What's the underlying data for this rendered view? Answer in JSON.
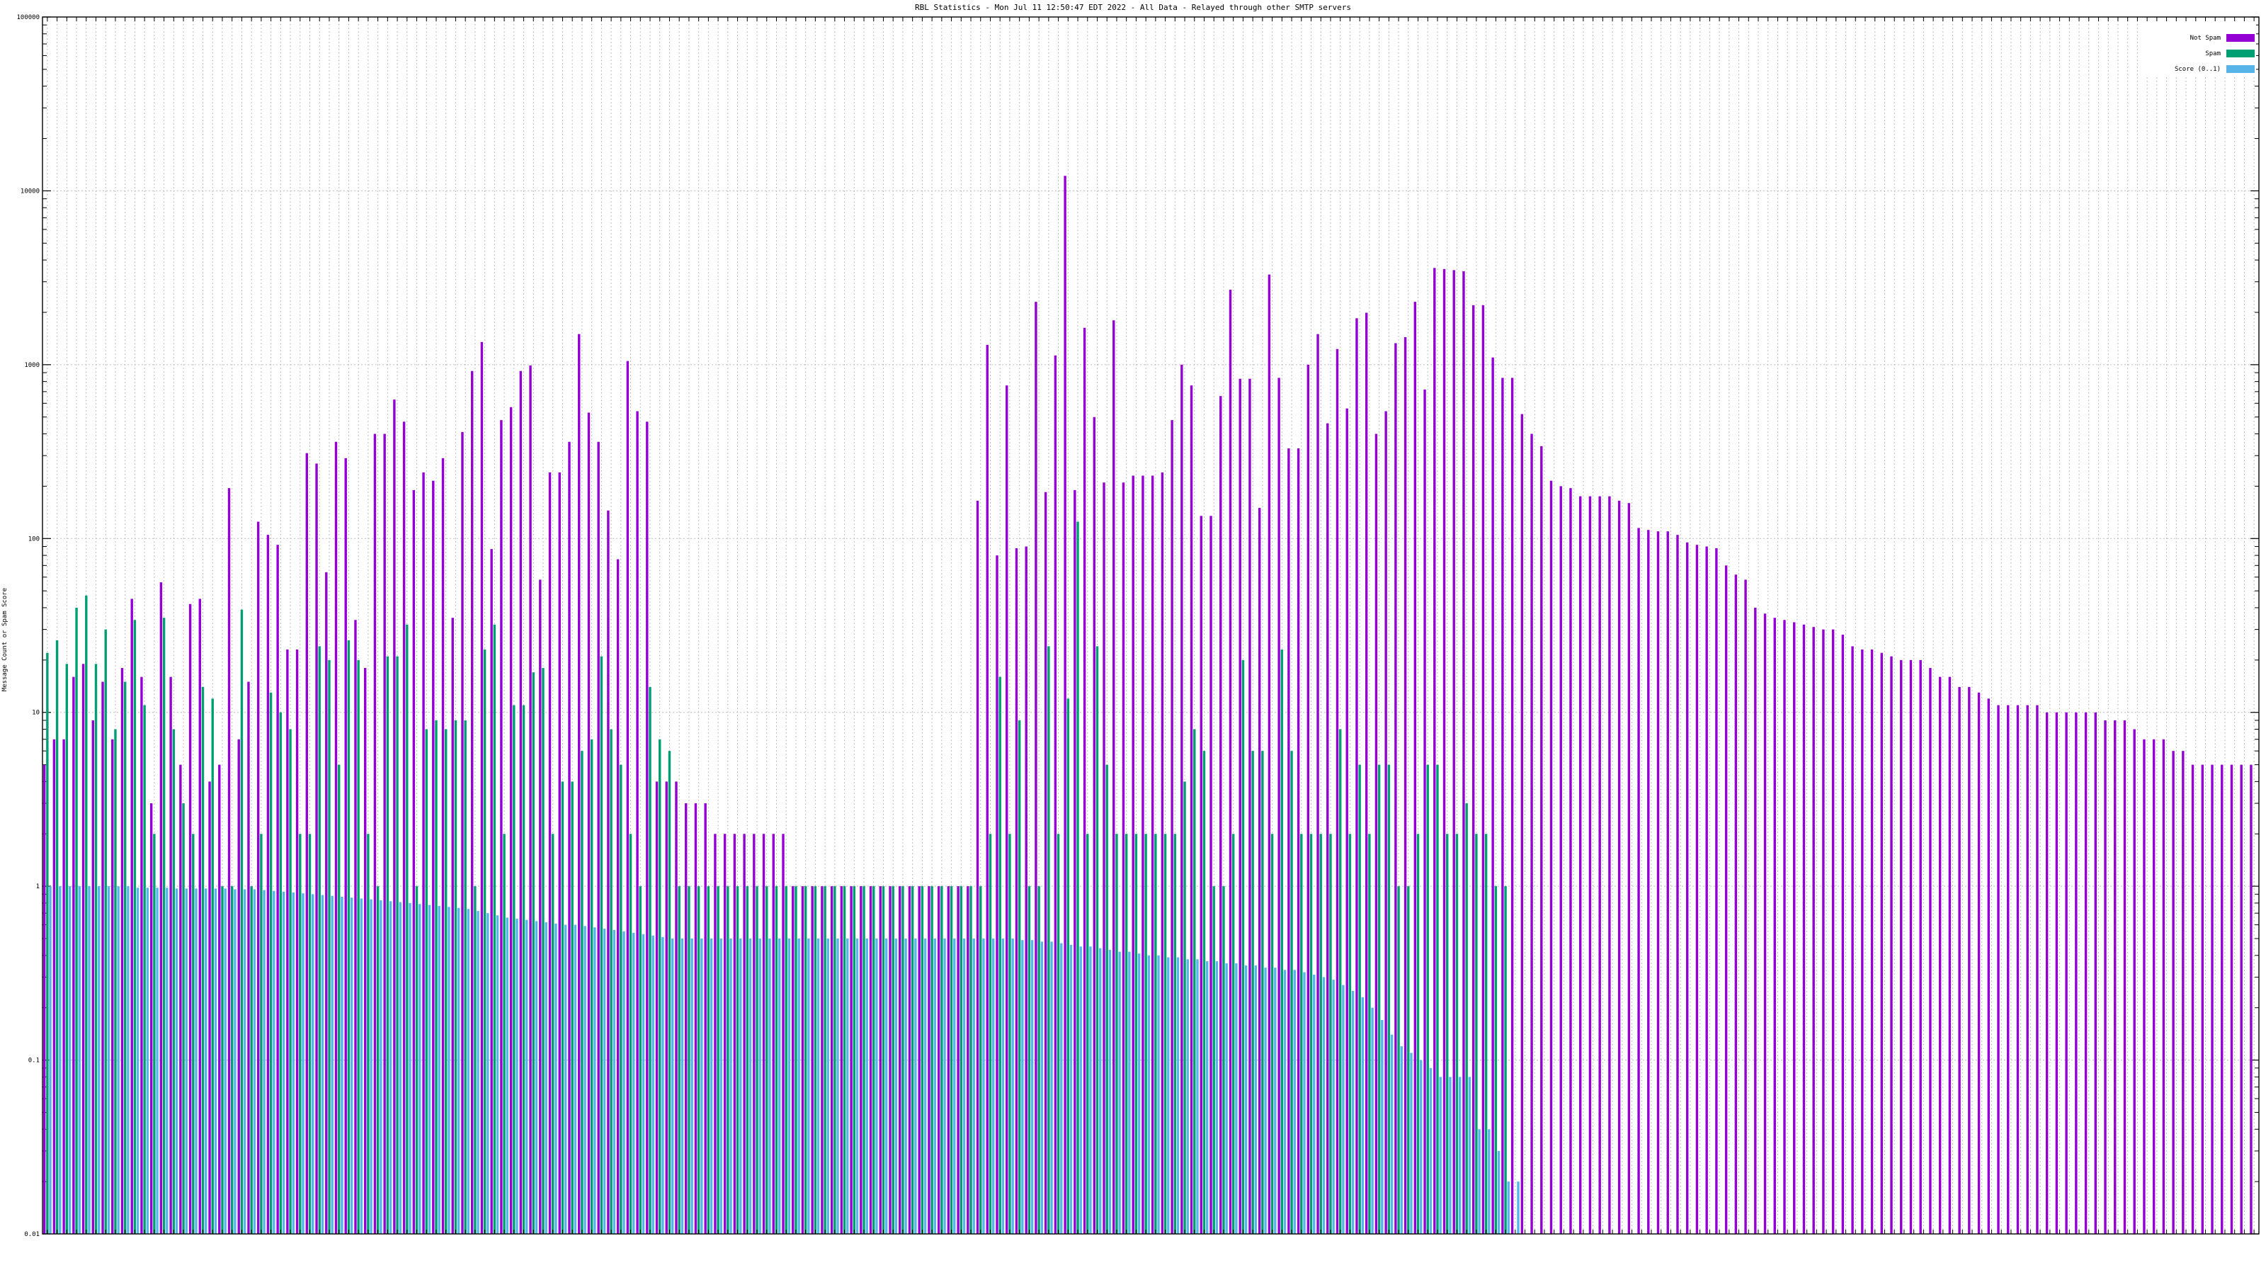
{
  "colors": {
    "not_spam": "#9400d3",
    "spam": "#009e73",
    "score": "#56b4e9"
  },
  "chart_data": {
    "type": "bar",
    "title": "RBL Statistics - Mon Jul 11 12:50:47 EDT 2022 - All Data - Relayed through other SMTP servers",
    "xlabel": "",
    "ylabel": "Message Count or Spam Score",
    "yscale": "log",
    "ylim": [
      0.01,
      100000
    ],
    "yticks": [
      {
        "value": 0.01,
        "label": "0.01"
      },
      {
        "value": 0.1,
        "label": "0.1"
      },
      {
        "value": 1,
        "label": "1"
      },
      {
        "value": 10,
        "label": "10"
      },
      {
        "value": 100,
        "label": "100"
      },
      {
        "value": 1000,
        "label": "1000"
      },
      {
        "value": 10000,
        "label": "10000"
      },
      {
        "value": 100000,
        "label": "100000"
      }
    ],
    "grid": true,
    "legend_position": "top-right",
    "legend": [
      {
        "label": "Not Spam",
        "color": "#9400d3"
      },
      {
        "label": "Spam",
        "color": "#009e73"
      },
      {
        "label": "Score (0..1)",
        "color": "#56b4e9"
      }
    ],
    "categories_note": "category tick labels are too small to read in the source image",
    "series": [
      {
        "name": "Not Spam",
        "color": "#9400d3",
        "values": [
          5,
          7,
          7,
          16,
          19,
          9,
          15,
          7,
          18,
          45,
          16,
          3,
          56,
          16,
          5,
          42,
          45,
          4,
          5,
          195,
          7,
          15,
          125,
          105,
          92,
          23,
          23,
          310,
          270,
          64,
          360,
          290,
          34,
          18,
          400,
          400,
          630,
          470,
          190,
          240,
          215,
          290,
          35,
          410,
          920,
          1350,
          87,
          480,
          570,
          920,
          990,
          58,
          240,
          240,
          360,
          1500,
          530,
          360,
          145,
          76,
          1050,
          540,
          470,
          4,
          4,
          4,
          3,
          3,
          3,
          2,
          2,
          2,
          2,
          2,
          2,
          2,
          2,
          1,
          1,
          1,
          1,
          1,
          1,
          1,
          1,
          1,
          1,
          1,
          1,
          1,
          1,
          1,
          1,
          1,
          1,
          1,
          165,
          1300,
          80,
          760,
          88,
          90,
          2300,
          185,
          1130,
          12200,
          190,
          1630,
          500,
          210,
          1800,
          210,
          230,
          230,
          230,
          240,
          480,
          1000,
          760,
          135,
          135,
          660,
          2700,
          830,
          830,
          150,
          3300,
          840,
          330,
          330,
          1000,
          1500,
          460,
          1230,
          560,
          1850,
          1990,
          400,
          540,
          1330,
          1440,
          2300,
          720,
          3600,
          3550,
          3500,
          3450,
          2200,
          2200,
          1100,
          840,
          840,
          520,
          400,
          340,
          215,
          200,
          195,
          175,
          175,
          175,
          175,
          165,
          160,
          115,
          112,
          110,
          110,
          105,
          95,
          92,
          90,
          88,
          70,
          62,
          58,
          40,
          37,
          35,
          34,
          33,
          32,
          31,
          30,
          30,
          28,
          24,
          23,
          23,
          22,
          21,
          20,
          20,
          20,
          18,
          16,
          16,
          14,
          14,
          13,
          12,
          11,
          11,
          11,
          11,
          11,
          10,
          10,
          10,
          10,
          10,
          10,
          9,
          9,
          9,
          8,
          7,
          7,
          7,
          6,
          6,
          5,
          5,
          5,
          5,
          5,
          5,
          5
        ]
      },
      {
        "name": "Spam",
        "color": "#009e73",
        "values": [
          22,
          26,
          19,
          40,
          47,
          19,
          30,
          8,
          15,
          34,
          11,
          2,
          35,
          8,
          3,
          2,
          14,
          12,
          1,
          1,
          39,
          1,
          2,
          13,
          10,
          8,
          2,
          2,
          24,
          20,
          5,
          26,
          20,
          2,
          1,
          21,
          21,
          32,
          1,
          8,
          9,
          8,
          9,
          9,
          1,
          23,
          32,
          2,
          11,
          11,
          17,
          18,
          2,
          4,
          4,
          6,
          7,
          21,
          8,
          5,
          2,
          1,
          14,
          7,
          6,
          1,
          1,
          1,
          1,
          1,
          1,
          1,
          1,
          1,
          1,
          1,
          1,
          1,
          1,
          1,
          1,
          1,
          1,
          1,
          1,
          1,
          1,
          1,
          1,
          1,
          1,
          1,
          1,
          1,
          1,
          1,
          1,
          2,
          16,
          2,
          9,
          1,
          1,
          24,
          2,
          12,
          125,
          2,
          24,
          5,
          2,
          2,
          2,
          2,
          2,
          2,
          2,
          4,
          8,
          6,
          1,
          1,
          2,
          20,
          6,
          6,
          2,
          23,
          6,
          2,
          2,
          2,
          2,
          8,
          2,
          5,
          2,
          5,
          5,
          1,
          1,
          2,
          5,
          5,
          2,
          2,
          3,
          2,
          2,
          1,
          1
        ]
      },
      {
        "name": "Score (0..1)",
        "color": "#56b4e9",
        "values": [
          1,
          1,
          1,
          1,
          1,
          1,
          1,
          1,
          1,
          0.98,
          0.98,
          0.98,
          0.98,
          0.97,
          0.97,
          0.97,
          0.97,
          0.97,
          0.97,
          0.96,
          0.96,
          0.96,
          0.95,
          0.94,
          0.93,
          0.92,
          0.91,
          0.9,
          0.89,
          0.88,
          0.87,
          0.86,
          0.85,
          0.84,
          0.83,
          0.82,
          0.81,
          0.8,
          0.79,
          0.78,
          0.77,
          0.76,
          0.75,
          0.74,
          0.72,
          0.7,
          0.68,
          0.66,
          0.65,
          0.64,
          0.63,
          0.62,
          0.61,
          0.6,
          0.6,
          0.59,
          0.58,
          0.57,
          0.56,
          0.55,
          0.54,
          0.53,
          0.52,
          0.51,
          0.5,
          0.5,
          0.5,
          0.5,
          0.5,
          0.5,
          0.5,
          0.5,
          0.5,
          0.5,
          0.5,
          0.5,
          0.5,
          0.5,
          0.5,
          0.5,
          0.5,
          0.5,
          0.5,
          0.5,
          0.5,
          0.5,
          0.5,
          0.5,
          0.5,
          0.5,
          0.5,
          0.5,
          0.5,
          0.5,
          0.5,
          0.5,
          0.5,
          0.5,
          0.5,
          0.5,
          0.49,
          0.49,
          0.48,
          0.48,
          0.47,
          0.46,
          0.45,
          0.45,
          0.44,
          0.43,
          0.42,
          0.42,
          0.41,
          0.4,
          0.4,
          0.39,
          0.39,
          0.38,
          0.38,
          0.37,
          0.37,
          0.36,
          0.36,
          0.35,
          0.35,
          0.34,
          0.34,
          0.33,
          0.33,
          0.32,
          0.31,
          0.3,
          0.29,
          0.27,
          0.25,
          0.23,
          0.2,
          0.17,
          0.14,
          0.12,
          0.11,
          0.1,
          0.09,
          0.08,
          0.08,
          0.08,
          0.08,
          0.04,
          0.04,
          0.03,
          0.02,
          0.02
        ]
      }
    ]
  }
}
